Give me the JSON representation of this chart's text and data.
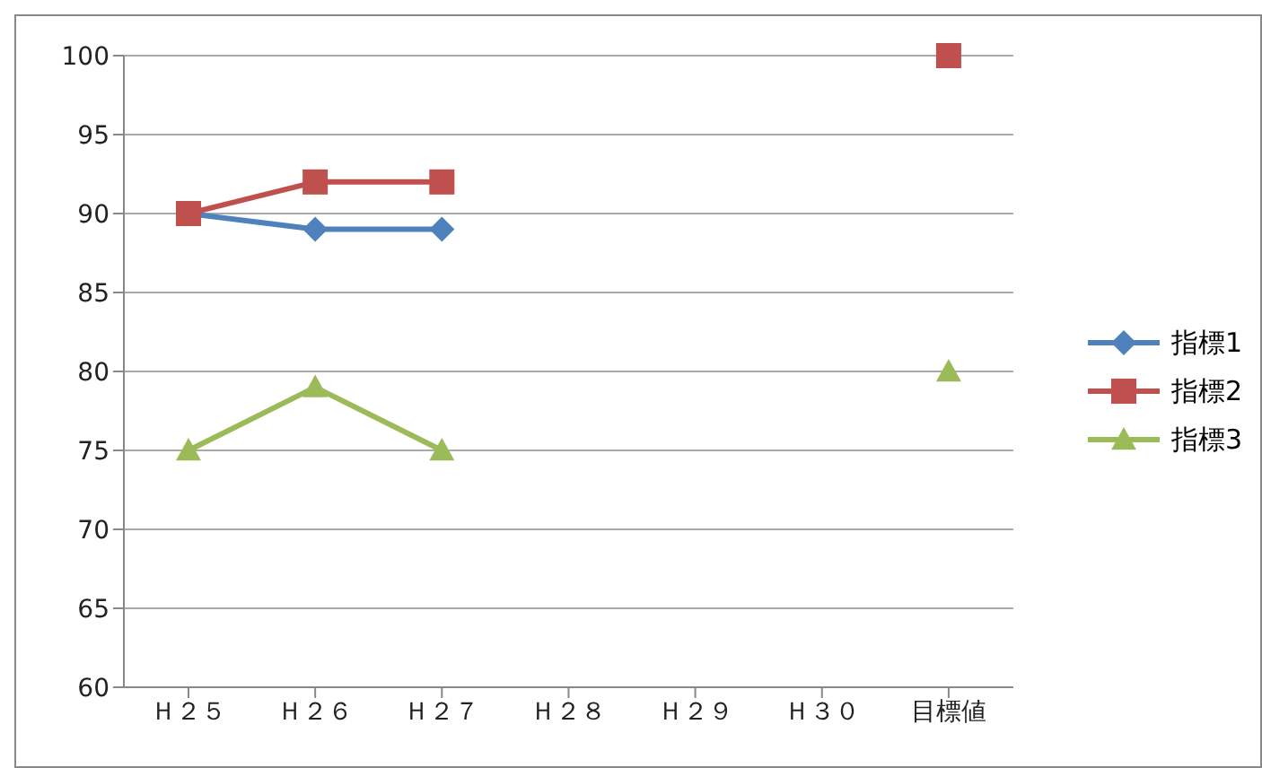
{
  "chart_data": {
    "type": "line",
    "categories": [
      "Ｈ２５",
      "Ｈ２６",
      "Ｈ２７",
      "Ｈ２８",
      "Ｈ２９",
      "Ｈ３０",
      "目標値"
    ],
    "series": [
      {
        "name": "指標1",
        "color": "#4f81bd",
        "marker": "diamond",
        "values": [
          90,
          89,
          89,
          null,
          null,
          null,
          null
        ]
      },
      {
        "name": "指標2",
        "color": "#c0504d",
        "marker": "square",
        "values": [
          90,
          92,
          92,
          null,
          null,
          null,
          100
        ]
      },
      {
        "name": "指標3",
        "color": "#9bbb59",
        "marker": "triangle",
        "values": [
          75,
          79,
          75,
          null,
          null,
          null,
          80
        ]
      }
    ],
    "ylim": [
      60,
      100
    ],
    "yticks": [
      60,
      65,
      70,
      75,
      80,
      85,
      90,
      95,
      100
    ],
    "grid": "y",
    "legend": "right"
  }
}
